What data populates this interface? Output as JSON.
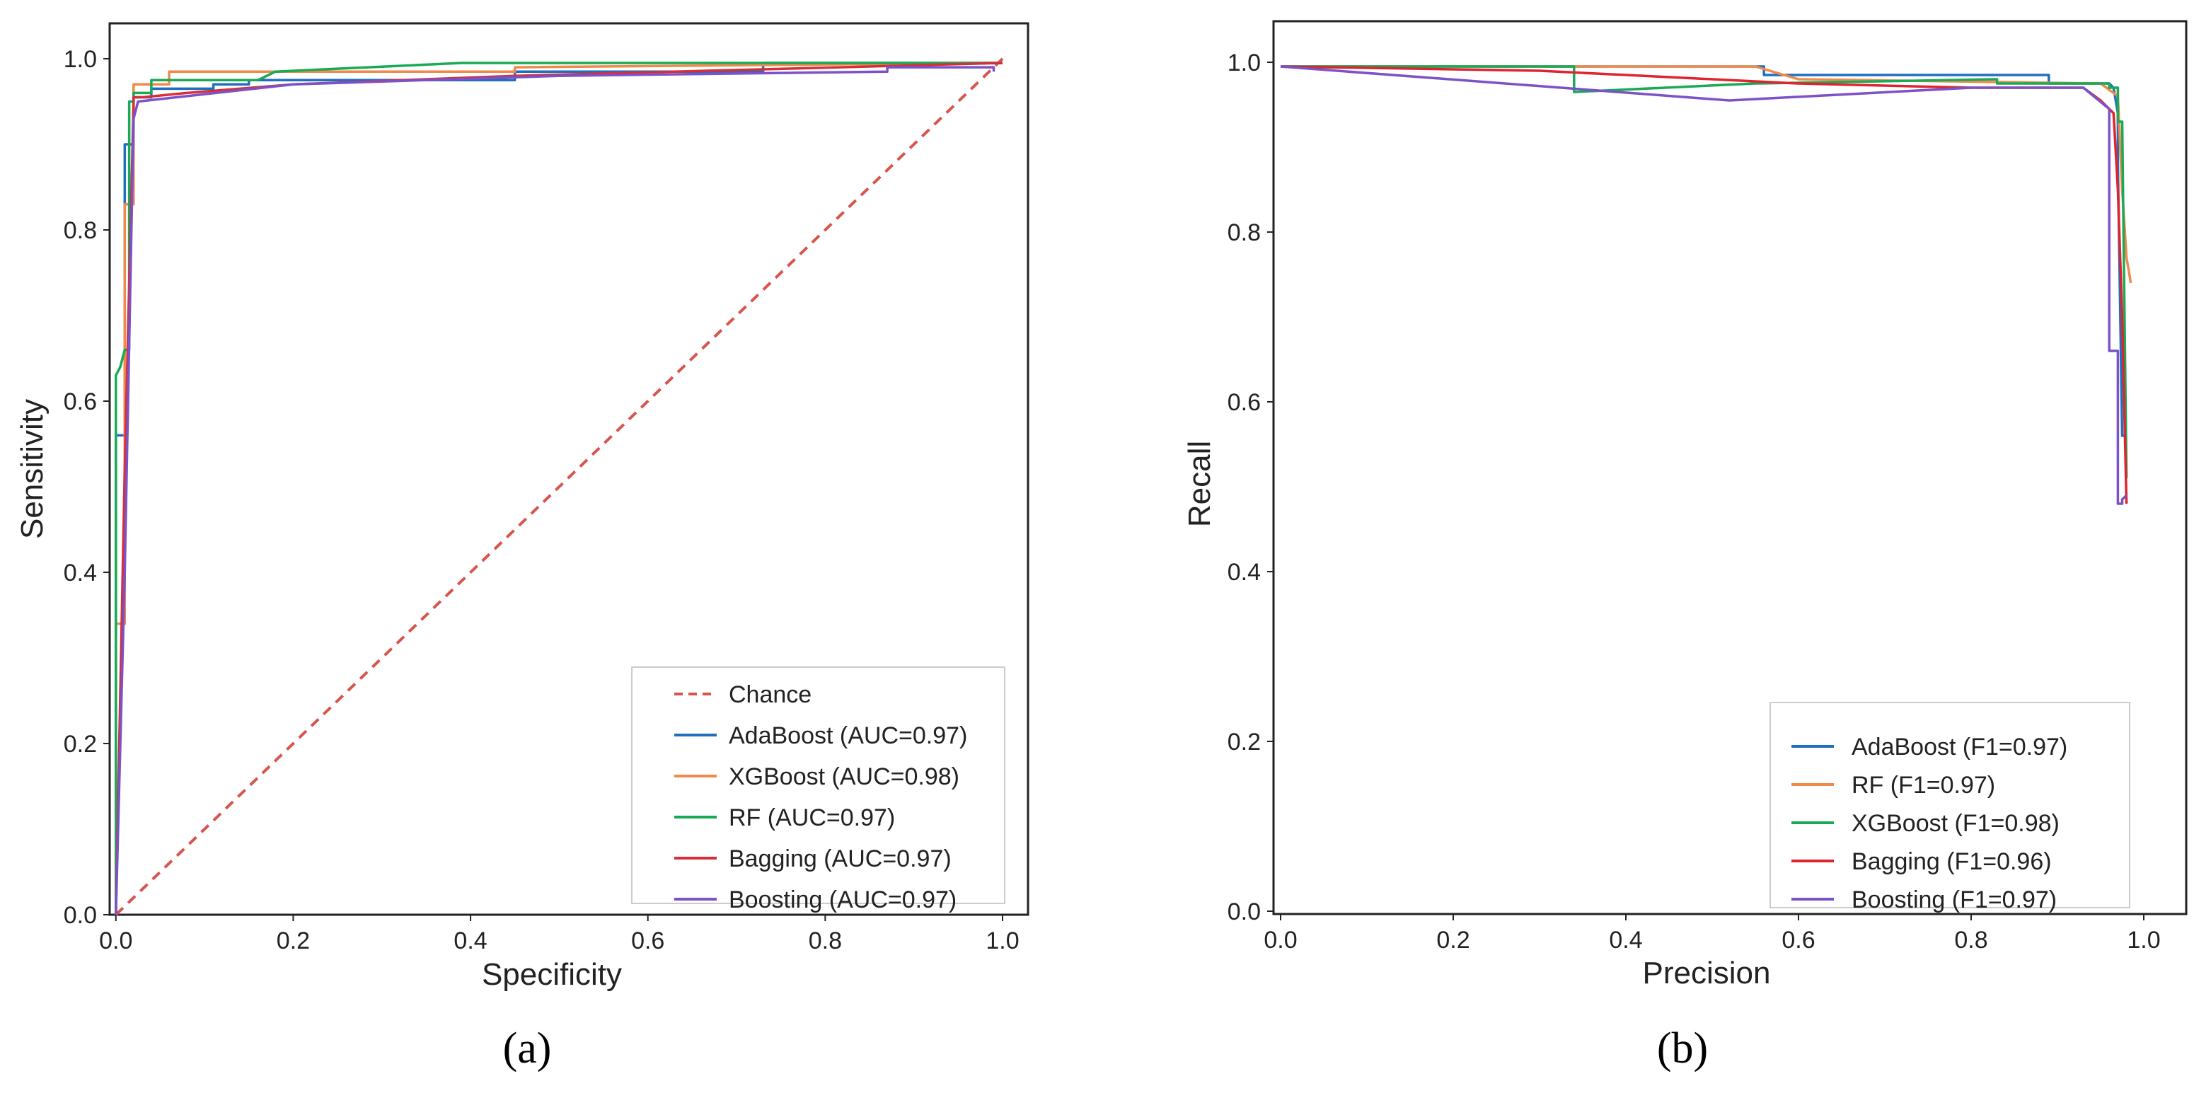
{
  "chart_data": [
    {
      "type": "line",
      "panel_label": "(a)",
      "xlabel": "Specificity",
      "ylabel": "Sensitivity",
      "xlim": [
        0.0,
        1.0
      ],
      "ylim": [
        0.0,
        1.0
      ],
      "xticks": [
        "0.0",
        "0.2",
        "0.4",
        "0.6",
        "0.8",
        "1.0"
      ],
      "yticks": [
        "0.0",
        "0.2",
        "0.4",
        "0.6",
        "0.8",
        "1.0"
      ],
      "grid": false,
      "legend_position": "lower-right",
      "series": [
        {
          "name": "Chance",
          "legend_label": "Chance",
          "color": "#d9534f",
          "dashed": true,
          "x": [
            0.0,
            1.0
          ],
          "y": [
            0.0,
            1.0
          ]
        },
        {
          "name": "AdaBoost",
          "legend_label": "AdaBoost (AUC=0.97)",
          "color": "#1f6fbf",
          "x": [
            0.0,
            0.0,
            0.01,
            0.01,
            0.02,
            0.02,
            0.04,
            0.04,
            0.11,
            0.11,
            0.15,
            0.15,
            0.45,
            0.45,
            0.73,
            0.73,
            1.0
          ],
          "y": [
            0.0,
            0.56,
            0.56,
            0.9,
            0.9,
            0.955,
            0.955,
            0.965,
            0.965,
            0.97,
            0.97,
            0.975,
            0.975,
            0.985,
            0.985,
            0.995,
            0.995
          ]
        },
        {
          "name": "XGBoost",
          "legend_label": "XGBoost (AUC=0.98)",
          "color": "#f08a4b",
          "x": [
            0.0,
            0.0,
            0.01,
            0.01,
            0.02,
            0.02,
            0.06,
            0.06,
            0.2,
            0.45,
            0.45,
            1.0
          ],
          "y": [
            0.0,
            0.34,
            0.34,
            0.83,
            0.83,
            0.97,
            0.97,
            0.985,
            0.985,
            0.985,
            0.99,
            0.995
          ]
        },
        {
          "name": "RF",
          "legend_label": "RF (AUC=0.97)",
          "color": "#1aaa55",
          "x": [
            0.0,
            0.0,
            0.005,
            0.01,
            0.015,
            0.015,
            0.02,
            0.02,
            0.04,
            0.04,
            0.16,
            0.18,
            0.39,
            0.88,
            1.0
          ],
          "y": [
            0.0,
            0.63,
            0.64,
            0.66,
            0.66,
            0.95,
            0.95,
            0.96,
            0.96,
            0.975,
            0.975,
            0.985,
            0.995,
            0.995,
            0.995
          ]
        },
        {
          "name": "Bagging",
          "legend_label": "Bagging (AUC=0.97)",
          "color": "#d62f3a",
          "x": [
            0.0,
            0.01,
            0.02,
            0.02,
            0.03,
            0.08,
            0.2,
            0.45,
            1.0
          ],
          "y": [
            0.0,
            0.52,
            0.95,
            0.955,
            0.955,
            0.96,
            0.97,
            0.98,
            0.995
          ]
        },
        {
          "name": "Boosting",
          "legend_label": "Boosting (AUC=0.97)",
          "color": "#7b52c8",
          "x": [
            0.0,
            0.01,
            0.02,
            0.025,
            0.2,
            0.5,
            0.87,
            0.87,
            0.99,
            0.99
          ],
          "y": [
            0.0,
            0.4,
            0.93,
            0.95,
            0.97,
            0.98,
            0.985,
            0.99,
            0.99,
            0.985
          ]
        }
      ]
    },
    {
      "type": "line",
      "panel_label": "(b)",
      "xlabel": "Precision",
      "ylabel": "Recall",
      "xlim": [
        0.0,
        1.0
      ],
      "ylim": [
        0.0,
        1.0
      ],
      "xticks": [
        "0.0",
        "0.2",
        "0.4",
        "0.6",
        "0.8",
        "1.0"
      ],
      "yticks": [
        "0.0",
        "0.2",
        "0.4",
        "0.6",
        "0.8",
        "1.0"
      ],
      "grid": false,
      "legend_position": "lower-right",
      "series": [
        {
          "name": "AdaBoost",
          "legend_label": "AdaBoost (F1=0.97)",
          "color": "#1f6fbf",
          "x": [
            0.0,
            0.56,
            0.56,
            0.89,
            0.89,
            0.96,
            0.965,
            0.97,
            0.97,
            0.975,
            0.98
          ],
          "y": [
            0.995,
            0.995,
            0.985,
            0.985,
            0.975,
            0.975,
            0.97,
            0.94,
            0.88,
            0.56,
            0.56
          ]
        },
        {
          "name": "RF",
          "legend_label": "RF (F1=0.97)",
          "color": "#f08a4b",
          "x": [
            0.0,
            0.55,
            0.6,
            0.95,
            0.97,
            0.975,
            0.98,
            0.985
          ],
          "y": [
            0.995,
            0.995,
            0.98,
            0.975,
            0.96,
            0.85,
            0.77,
            0.74
          ]
        },
        {
          "name": "XGBoost",
          "legend_label": "XGBoost (F1=0.98)",
          "color": "#1aaa55",
          "x": [
            0.0,
            0.34,
            0.34,
            0.55,
            0.83,
            0.83,
            0.96,
            0.96,
            0.97,
            0.97,
            0.975,
            0.98
          ],
          "y": [
            0.995,
            0.995,
            0.965,
            0.975,
            0.98,
            0.975,
            0.975,
            0.97,
            0.97,
            0.93,
            0.93,
            0.51
          ]
        },
        {
          "name": "Bagging",
          "legend_label": "Bagging (F1=0.96)",
          "color": "#e0232f",
          "x": [
            0.0,
            0.3,
            0.6,
            0.8,
            0.93,
            0.95,
            0.965,
            0.97,
            0.975,
            0.98
          ],
          "y": [
            0.995,
            0.99,
            0.975,
            0.97,
            0.97,
            0.955,
            0.94,
            0.85,
            0.7,
            0.48
          ]
        },
        {
          "name": "Boosting",
          "legend_label": "Boosting (F1=0.97)",
          "color": "#7b52c8",
          "x": [
            0.0,
            0.52,
            0.8,
            0.93,
            0.96,
            0.96,
            0.97,
            0.97,
            0.975,
            0.975,
            0.98
          ],
          "y": [
            0.995,
            0.955,
            0.97,
            0.97,
            0.945,
            0.66,
            0.66,
            0.48,
            0.48,
            0.485,
            0.49
          ]
        }
      ]
    }
  ]
}
